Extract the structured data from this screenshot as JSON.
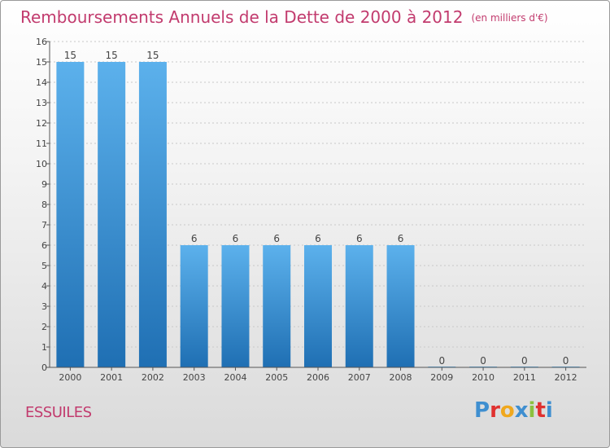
{
  "title": "Remboursements Annuels de la Dette de 2000 à 2012",
  "subtitle": "(en milliers d'€)",
  "commune": "ESSUILES",
  "logo": {
    "letters": [
      "P",
      "r",
      "o",
      "x",
      "i",
      "t",
      "i"
    ],
    "colors": [
      "#3f8fd0",
      "#e0312f",
      "#f0a81e",
      "#3f8fd0",
      "#8bc13f",
      "#e0312f",
      "#3f8fd0"
    ]
  },
  "colors": {
    "bar_top": "#5cb1ec",
    "bar_bottom": "#1f6fb3",
    "accent": "#c23b6e",
    "grid": "#c8c8c8"
  },
  "chart_data": {
    "type": "bar",
    "title": "Remboursements Annuels de la Dette de 2000 à 2012",
    "xlabel": "",
    "ylabel": "",
    "ylim": [
      0,
      16
    ],
    "yticks": [
      0,
      1,
      2,
      3,
      4,
      5,
      6,
      7,
      8,
      9,
      10,
      11,
      12,
      13,
      14,
      15,
      16
    ],
    "grid": true,
    "categories": [
      "2000",
      "2001",
      "2002",
      "2003",
      "2004",
      "2005",
      "2006",
      "2007",
      "2008",
      "2009",
      "2010",
      "2011",
      "2012"
    ],
    "values": [
      15,
      15,
      15,
      6,
      6,
      6,
      6,
      6,
      6,
      0,
      0,
      0,
      0
    ],
    "data_labels": [
      "15",
      "15",
      "15",
      "6",
      "6",
      "6",
      "6",
      "6",
      "6",
      "0",
      "0",
      "0",
      "0"
    ]
  }
}
